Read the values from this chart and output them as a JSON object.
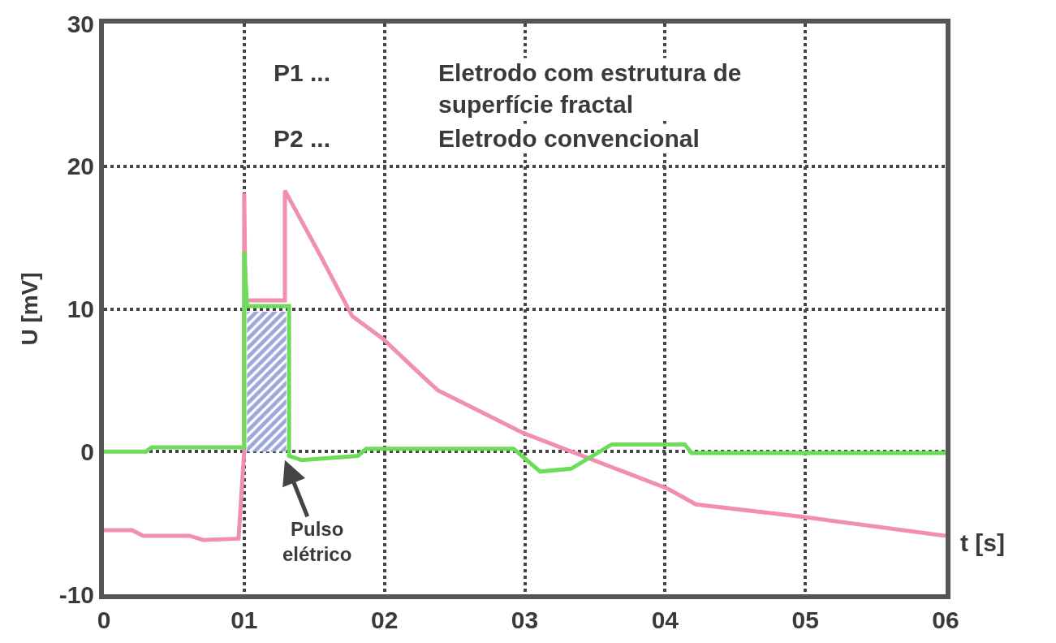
{
  "chart_data": {
    "type": "line",
    "xlabel": "t [s]",
    "ylabel": "U [mV]",
    "xlim": [
      0,
      6
    ],
    "xticks": [
      0,
      {
        "value": 1,
        "label": "01"
      },
      {
        "value": 2,
        "label": "02"
      },
      {
        "value": 3,
        "label": "03"
      },
      {
        "value": 4,
        "label": "04"
      },
      {
        "value": 5,
        "label": "05"
      },
      {
        "value": 6,
        "label": "06"
      }
    ],
    "ylim": [
      -10,
      30
    ],
    "yticks": [
      -10,
      0,
      10,
      20,
      30
    ],
    "grid": true,
    "legend": false,
    "series": [
      {
        "color": "#f08fb0",
        "x": [
          0,
          0.2,
          0.28,
          0.61,
          0.71,
          0.96,
          1.0,
          1.0,
          1.01,
          1.29,
          1.29,
          1.54,
          1.77,
          1.99,
          2.28,
          2.38,
          2.99,
          4.02,
          4.22,
          5.0,
          6.0
        ],
        "values": [
          -5.5,
          -5.5,
          -5.9,
          -5.9,
          -6.2,
          -6.1,
          0,
          18.1,
          10.6,
          10.6,
          18.3,
          13.8,
          9.5,
          7.9,
          5.2,
          4.3,
          1.3,
          -2.6,
          -3.7,
          -4.6,
          -5.9
        ]
      },
      {
        "color": "#6ddc5a",
        "x": [
          0,
          0.3,
          0.34,
          1.0,
          1.0,
          1.02,
          1.32,
          1.32,
          1.41,
          1.81,
          1.87,
          2.92,
          3.11,
          3.33,
          3.62,
          4.14,
          4.19,
          6.0
        ],
        "values": [
          0,
          0,
          0.3,
          0.3,
          14,
          10.2,
          10.2,
          -0.3,
          -0.6,
          -0.3,
          0.2,
          0.2,
          -1.4,
          -1.2,
          0.5,
          0.5,
          -0.1,
          -0.1
        ]
      },
      {
        "type": "area",
        "color": "#3b4fb8",
        "x": [
          1.02,
          1.3
        ],
        "values": [
          9.8,
          9.8
        ]
      }
    ],
    "annotations": [
      "P1 ...",
      "Eletrodo com estrutura de\nsuperfície fractal",
      "P2 ...",
      "Eletrodo convencional",
      "Pulso\nelétrico"
    ]
  }
}
